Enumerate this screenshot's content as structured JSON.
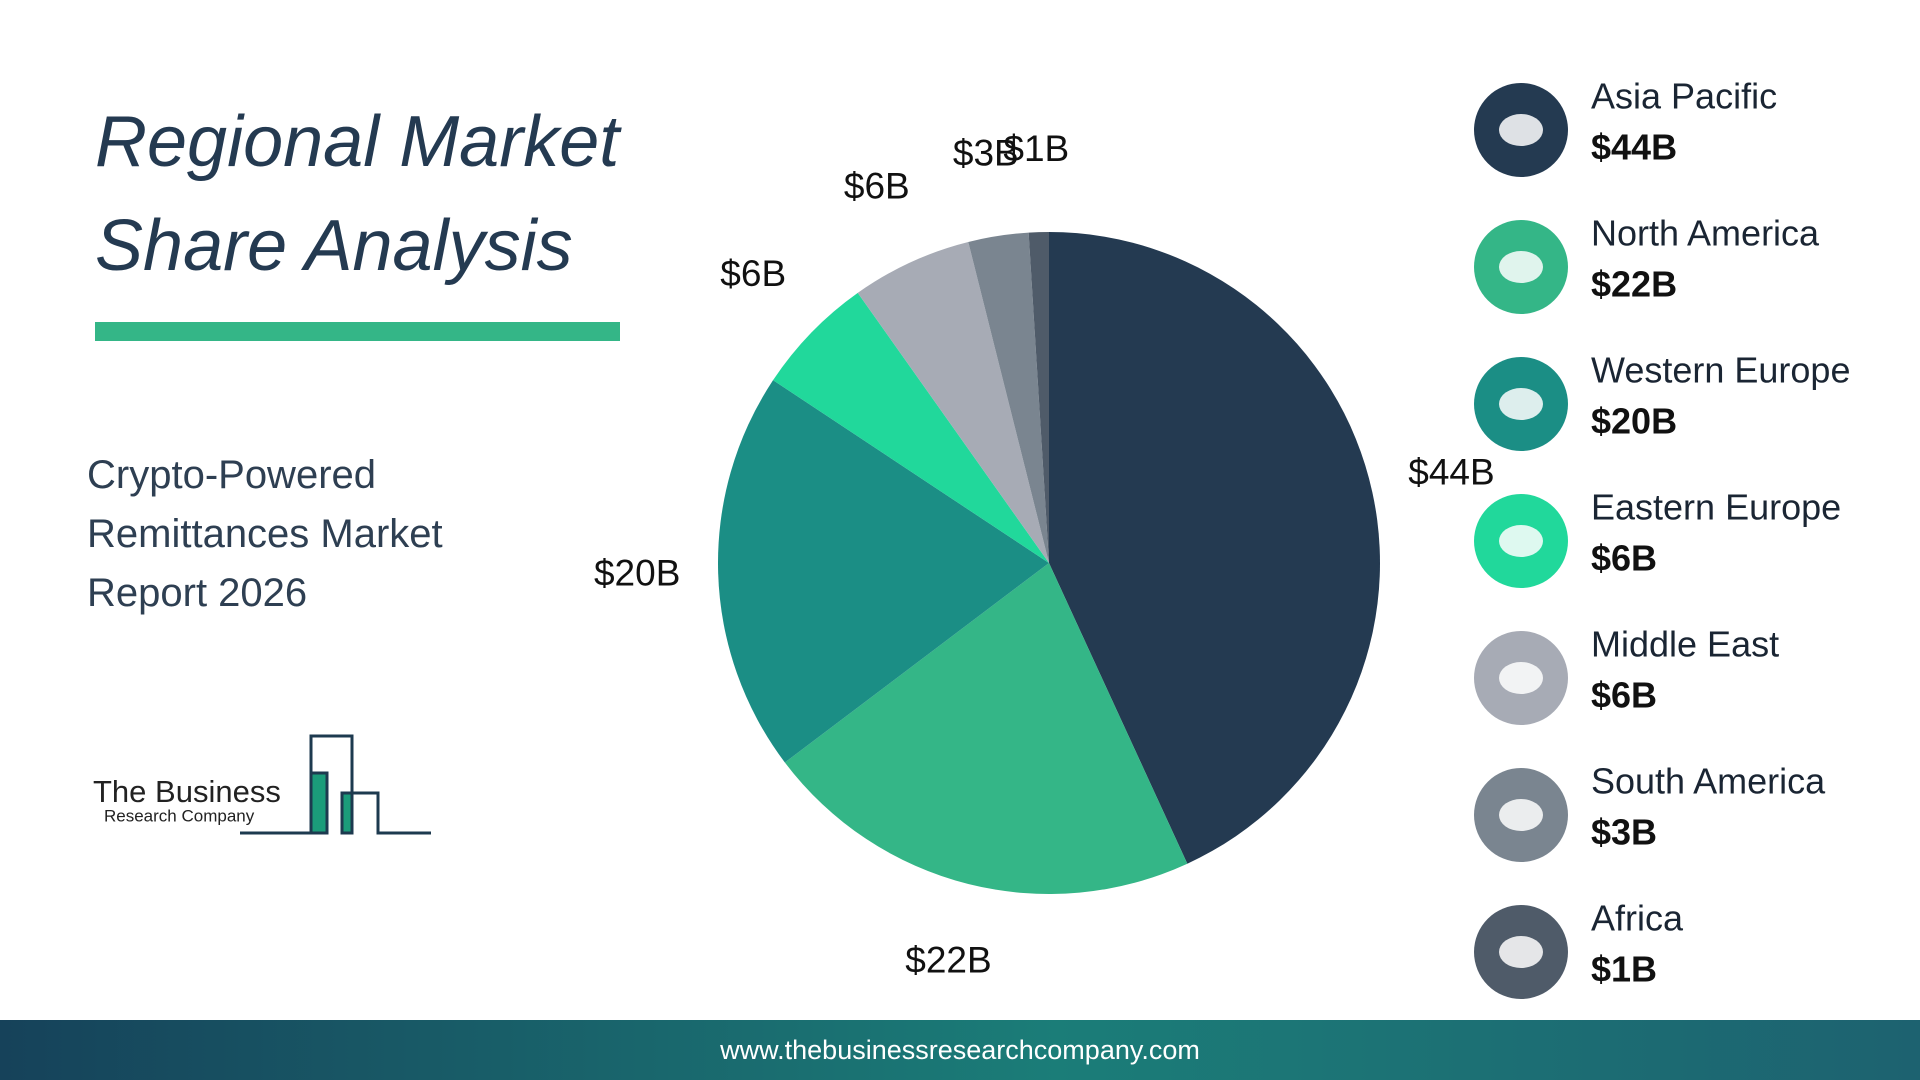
{
  "chart_data": {
    "type": "pie",
    "title": "Regional Market Share Analysis",
    "subtitle": "Crypto-Powered Remittances Market Report 2026",
    "categories": [
      "Asia Pacific",
      "North America",
      "Western Europe",
      "Eastern Europe",
      "Middle East",
      "South America",
      "Africa"
    ],
    "values": [
      44,
      22,
      20,
      6,
      6,
      3,
      1
    ],
    "value_labels": [
      "$44B",
      "$22B",
      "$20B",
      "$6B",
      "$6B",
      "$3B",
      "$1B"
    ],
    "colors": [
      "#243a51",
      "#34b687",
      "#1b8e85",
      "#21d89b",
      "#a7abb5",
      "#7a8590",
      "#4f5b69"
    ],
    "legend": "right"
  },
  "logo": {
    "line1": "The Business",
    "line2": "Research Company"
  },
  "footer": {
    "url": "www.thebusinessresearchcompany.com"
  }
}
